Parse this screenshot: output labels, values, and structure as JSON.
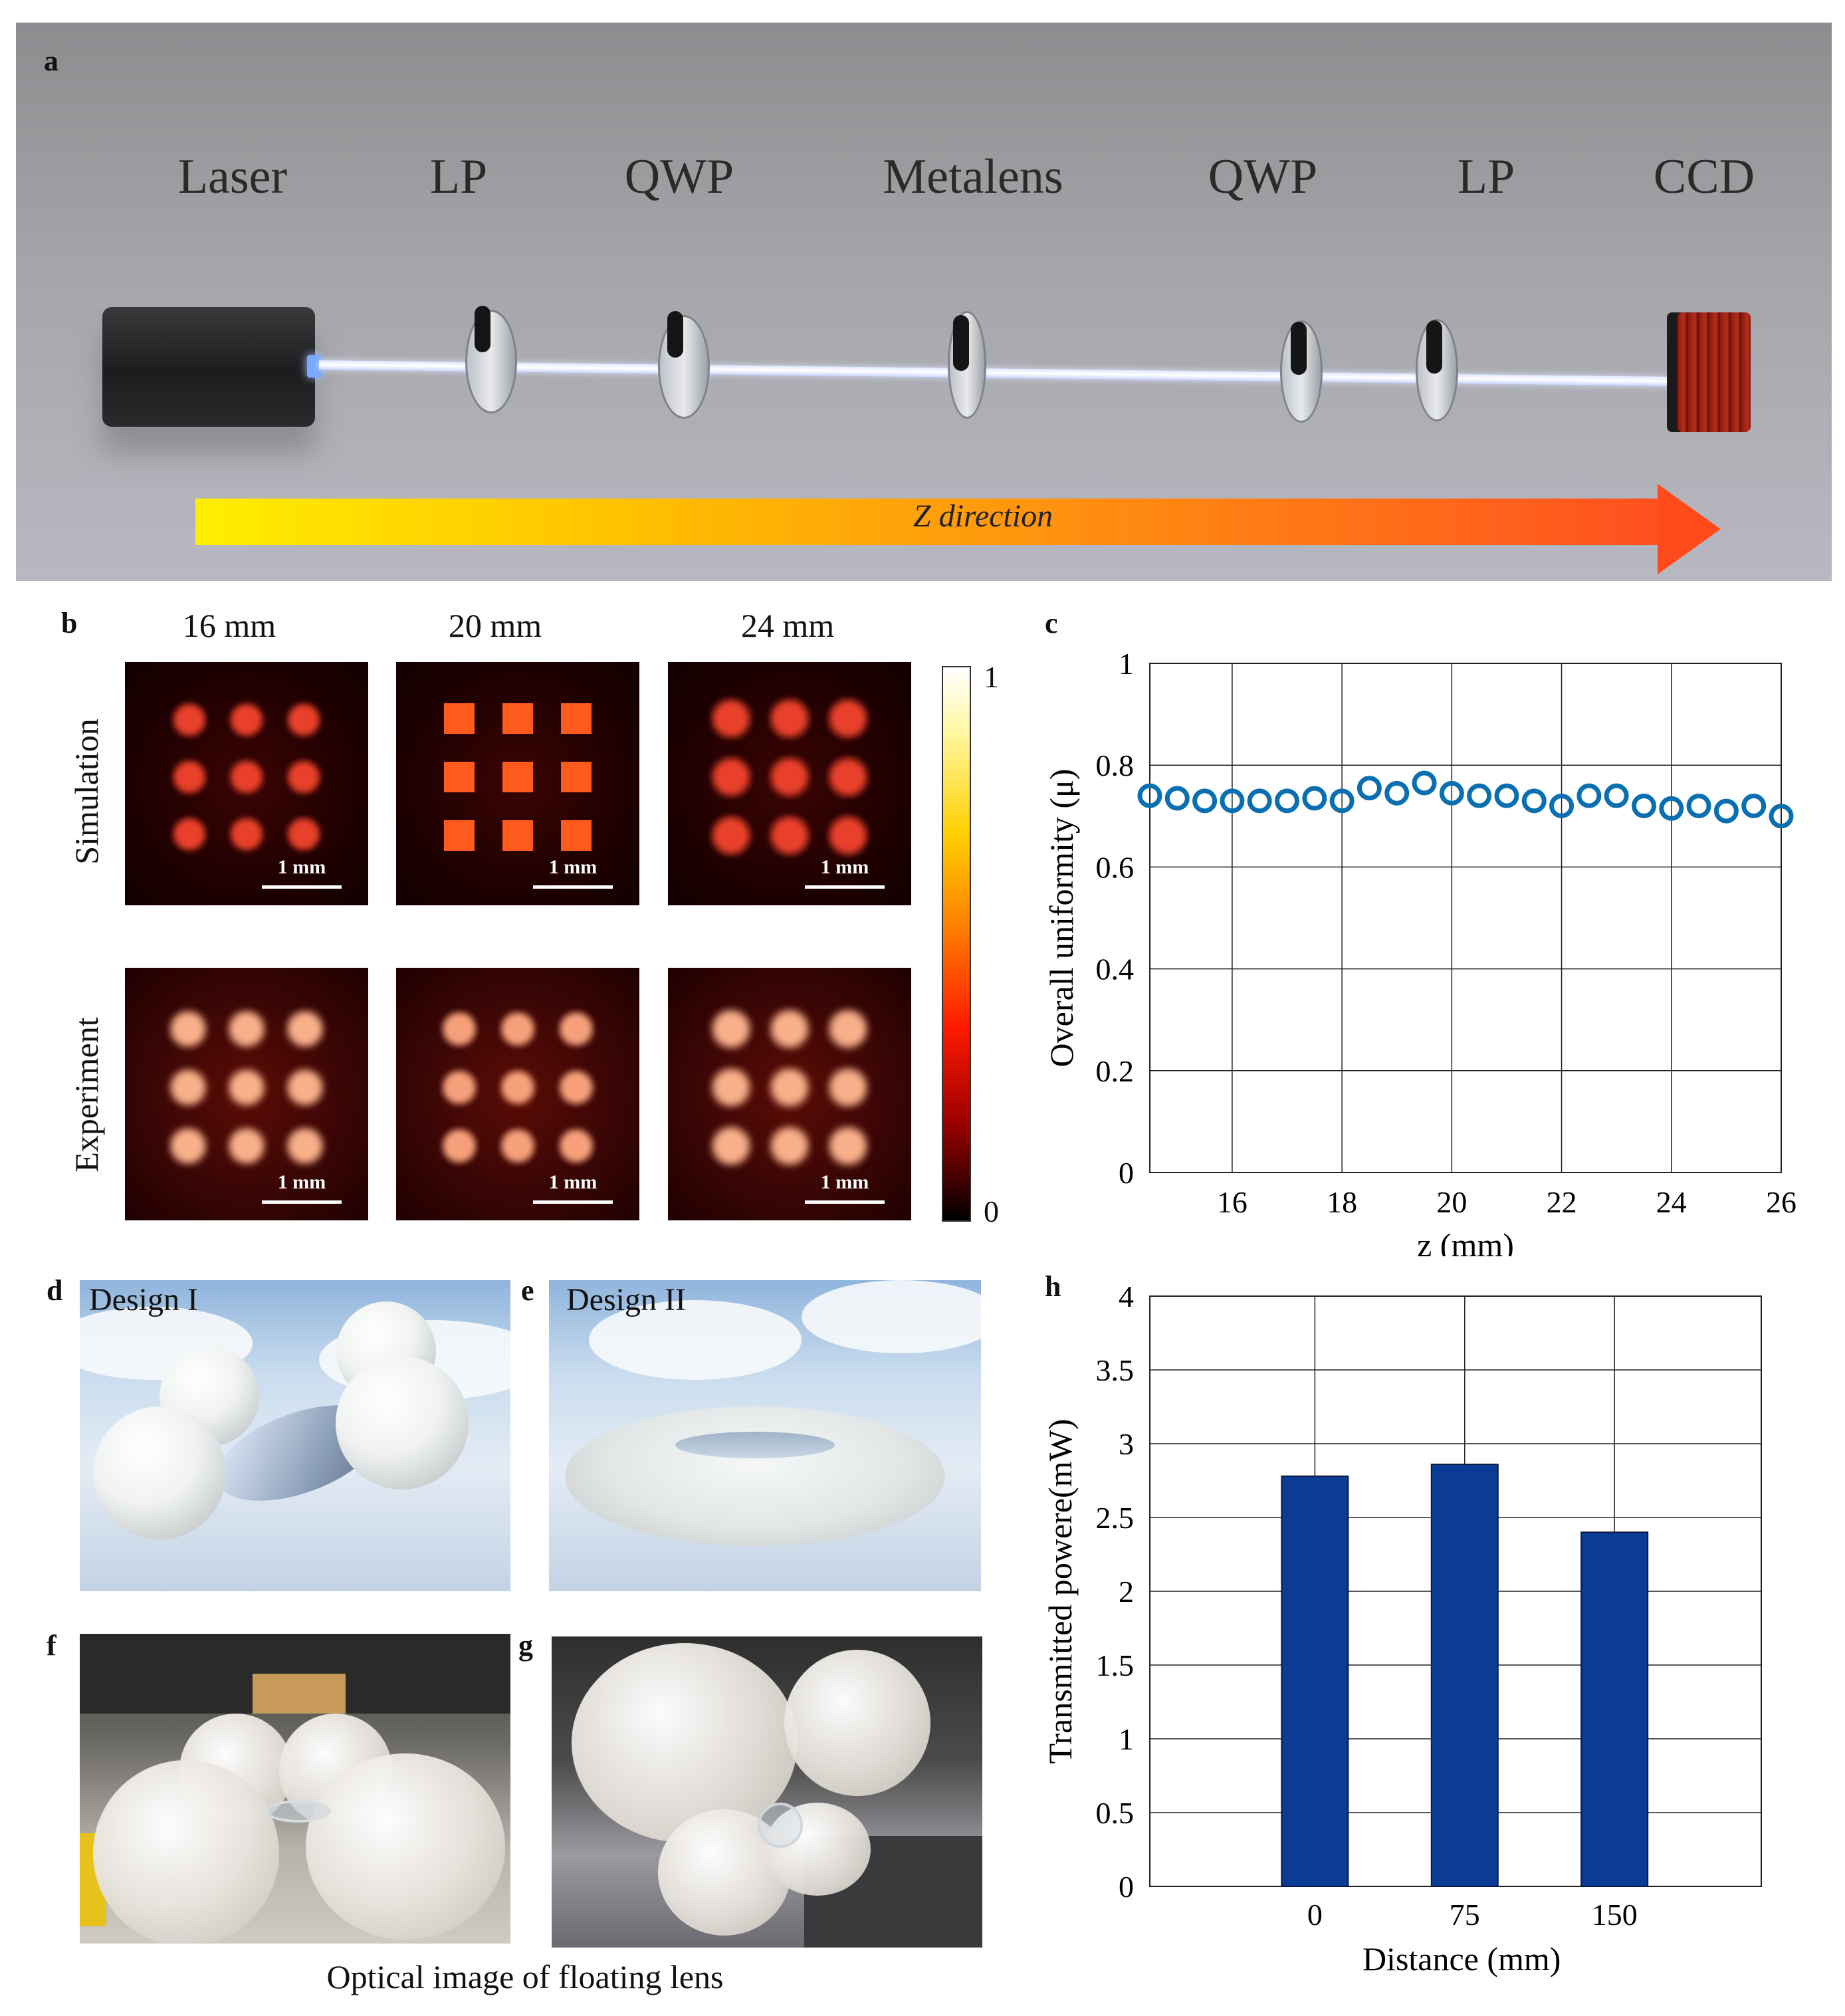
{
  "panels": {
    "a": {
      "label": "a",
      "components": [
        "Laser",
        "LP",
        "QWP",
        "Metalens",
        "QWP",
        "LP",
        "CCD"
      ],
      "arrow_label": "Z direction"
    },
    "b": {
      "label": "b",
      "columns": [
        "16 mm",
        "20 mm",
        "24 mm"
      ],
      "rows": [
        "Simulation",
        "Experiment"
      ],
      "scale_bar": "1 mm",
      "colorbar": {
        "max": "1",
        "min": "0",
        "colors": [
          "#ffffff",
          "#ffd000",
          "#ff1a00",
          "#000000"
        ]
      }
    },
    "c": {
      "label": "c"
    },
    "d": {
      "label": "d",
      "title": "Design I"
    },
    "e": {
      "label": "e",
      "title": "Design II"
    },
    "f": {
      "label": "f"
    },
    "g": {
      "label": "g"
    },
    "h": {
      "label": "h"
    },
    "caption": "Optical image of floating lens"
  },
  "chart_data": [
    {
      "panel": "c",
      "type": "scatter",
      "xlabel": "z (mm)",
      "ylabel": "Overall uniformity (μ)",
      "xlim": [
        14.5,
        26
      ],
      "ylim": [
        0,
        1
      ],
      "xticks": [
        16,
        18,
        20,
        22,
        24,
        26
      ],
      "yticks": [
        0,
        0.2,
        0.4,
        0.6,
        0.8,
        1
      ],
      "ytick_labels": [
        "0",
        "0.2",
        "0.4",
        "0.6",
        "0.8",
        "1"
      ],
      "grid": true,
      "marker": "open circle",
      "color": "#0a6fb0",
      "x": [
        14.5,
        15,
        15.5,
        16,
        16.5,
        17,
        17.5,
        18,
        18.5,
        19,
        19.5,
        20,
        20.5,
        21,
        21.5,
        22,
        22.5,
        23,
        23.5,
        24,
        24.5,
        25,
        25.5,
        26
      ],
      "y": [
        0.74,
        0.735,
        0.73,
        0.73,
        0.73,
        0.73,
        0.735,
        0.73,
        0.755,
        0.745,
        0.765,
        0.745,
        0.74,
        0.74,
        0.73,
        0.72,
        0.74,
        0.74,
        0.72,
        0.715,
        0.72,
        0.71,
        0.72,
        0.7
      ]
    },
    {
      "panel": "h",
      "type": "bar",
      "xlabel": "Distance (mm)",
      "ylabel": "Transmitted powere(mW)",
      "categories": [
        "0",
        "75",
        "150"
      ],
      "values": [
        2.78,
        2.86,
        2.4
      ],
      "ylim": [
        0,
        4
      ],
      "yticks": [
        0,
        0.5,
        1,
        1.5,
        2,
        2.5,
        3,
        3.5,
        4
      ],
      "grid": true,
      "color": "#0a3c96"
    }
  ]
}
